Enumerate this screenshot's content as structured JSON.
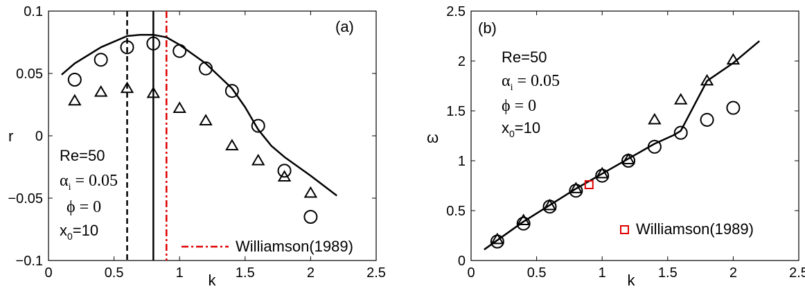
{
  "chart_data": [
    {
      "type": "line",
      "panel_label": "(a)",
      "xlabel": "k",
      "ylabel": "r",
      "xlim": [
        0,
        2.5
      ],
      "ylim": [
        -0.1,
        0.1
      ],
      "xticks": [
        "0",
        "0.5",
        "1",
        "1.5",
        "2",
        "2.5"
      ],
      "xtick_values": [
        0,
        0.5,
        1,
        1.5,
        2,
        2.5
      ],
      "yticks": [
        "0.1",
        "0.05",
        "0",
        "−0.05",
        "−0.1"
      ],
      "ytick_values": [
        0.1,
        0.05,
        0,
        -0.05,
        -0.1
      ],
      "series": [
        {
          "marker": "line",
          "color": "#000000",
          "x": [
            0.1,
            0.2,
            0.4,
            0.6,
            0.7,
            0.8,
            0.9,
            1.0,
            1.2,
            1.4,
            1.5,
            1.6,
            1.7,
            1.8,
            2.0,
            2.2
          ],
          "y": [
            0.049,
            0.058,
            0.071,
            0.08,
            0.081,
            0.081,
            0.079,
            0.073,
            0.058,
            0.038,
            0.023,
            0.005,
            -0.008,
            -0.017,
            -0.032,
            -0.048
          ]
        },
        {
          "marker": "circle",
          "color": "#000000",
          "x": [
            0.2,
            0.4,
            0.6,
            0.8,
            1.0,
            1.2,
            1.4,
            1.6,
            1.8,
            2.0
          ],
          "y": [
            0.045,
            0.061,
            0.071,
            0.074,
            0.068,
            0.054,
            0.036,
            0.008,
            -0.028,
            -0.065
          ]
        },
        {
          "marker": "triangle",
          "color": "#000000",
          "x": [
            0.2,
            0.4,
            0.6,
            0.8,
            1.0,
            1.2,
            1.4,
            1.6,
            1.8,
            2.0
          ],
          "y": [
            0.028,
            0.035,
            0.038,
            0.034,
            0.022,
            0.012,
            -0.008,
            -0.02,
            -0.033,
            -0.046
          ]
        }
      ],
      "vlines": [
        {
          "x": 0.6,
          "style": "dashed",
          "color": "#000000"
        },
        {
          "x": 0.8,
          "style": "solid",
          "color": "#000000"
        },
        {
          "x": 0.9,
          "style": "dashdot",
          "color": "#e00000"
        }
      ],
      "legend": {
        "label": "Williamson(1989)",
        "style": "dashdot",
        "color": "#e00000",
        "placement": "bottom-right"
      },
      "annotations": {
        "re": "Re=50",
        "alpha_base": "α",
        "alpha_sub": "i",
        "alpha_rest": " = 0.05",
        "phi": "ϕ = 0",
        "x0_base": "x",
        "x0_sub": "0",
        "x0_rest": "=10"
      }
    },
    {
      "type": "line",
      "panel_label": "(b)",
      "xlabel": "k",
      "ylabel": "ω",
      "xlim": [
        0,
        2.5
      ],
      "ylim": [
        0,
        2.5
      ],
      "xticks": [
        "0",
        "0.5",
        "1",
        "1.5",
        "2",
        "2.5"
      ],
      "xtick_values": [
        0,
        0.5,
        1,
        1.5,
        2,
        2.5
      ],
      "yticks": [
        "2.5",
        "2",
        "1.5",
        "1",
        "0.5",
        "0"
      ],
      "ytick_values": [
        2.5,
        2,
        1.5,
        1,
        0.5,
        0
      ],
      "series": [
        {
          "marker": "line",
          "color": "#000000",
          "x": [
            0.1,
            0.4,
            0.8,
            1.0,
            1.2,
            1.4,
            1.55,
            1.6,
            1.8,
            2.0,
            2.2
          ],
          "y": [
            0.11,
            0.39,
            0.72,
            0.87,
            1.02,
            1.17,
            1.26,
            1.3,
            1.8,
            1.98,
            2.2
          ]
        },
        {
          "marker": "circle",
          "color": "#000000",
          "x": [
            0.2,
            0.4,
            0.6,
            0.8,
            1.0,
            1.2,
            1.4,
            1.6,
            1.8,
            2.0
          ],
          "y": [
            0.19,
            0.37,
            0.54,
            0.7,
            0.85,
            1.0,
            1.14,
            1.28,
            1.41,
            1.53
          ]
        },
        {
          "marker": "triangle",
          "color": "#000000",
          "x": [
            0.2,
            0.4,
            0.6,
            0.8,
            1.0,
            1.2,
            1.4,
            1.6,
            1.8,
            2.0
          ],
          "y": [
            0.21,
            0.4,
            0.55,
            0.72,
            0.87,
            1.01,
            1.41,
            1.61,
            1.8,
            2.01
          ]
        },
        {
          "marker": "square",
          "color": "#e00000",
          "x": [
            0.9
          ],
          "y": [
            0.76
          ]
        }
      ],
      "legend": {
        "label": "Williamson(1989)",
        "marker": "square",
        "color": "#e00000",
        "placement": "bottom-right"
      },
      "annotations": {
        "re": "Re=50",
        "alpha_base": "α",
        "alpha_sub": "i",
        "alpha_rest": " = 0.05",
        "phi": "ϕ = 0",
        "x0_base": "x",
        "x0_sub": "0",
        "x0_rest": "=10"
      }
    }
  ]
}
